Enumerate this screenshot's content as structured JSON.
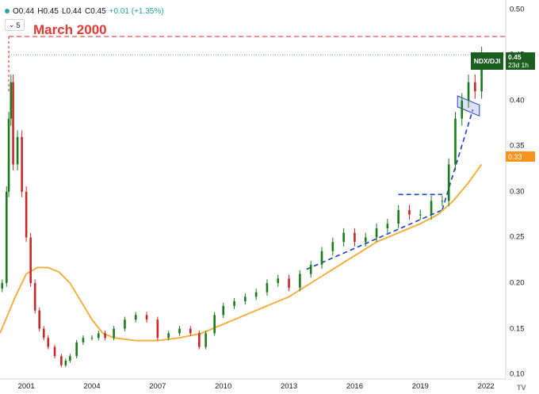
{
  "header": {
    "open": "O0.44",
    "high": "H0.45",
    "low": "L0.44",
    "close": "C0.45",
    "change": "+0.01 (+1.35%)",
    "indicator_count": "5"
  },
  "annotation": {
    "text": "March 2000"
  },
  "price_label": {
    "symbol": "NDX/DJI",
    "value": "0.45",
    "countdown": "23d 1h"
  },
  "ma_label": {
    "value": "0.33"
  },
  "colors": {
    "up": "#1b7a1b",
    "down": "#c62828",
    "moving_average": "#f5b044",
    "trendline": "#1a3fcf",
    "annotation": "#e53935",
    "price_tag": "#1b5e20"
  },
  "chart_data": {
    "type": "line",
    "subtype": "candlestick with moving average",
    "xlabel": "",
    "ylabel": "",
    "x_ticks": [
      "2001",
      "2004",
      "2007",
      "2010",
      "2013",
      "2016",
      "2019",
      "2022"
    ],
    "y_ticks": [
      "0.50",
      "0.45",
      "0.40",
      "0.35",
      "0.30",
      "0.25",
      "0.20",
      "0.15",
      "0.10"
    ],
    "ylim": [
      0.095,
      0.51
    ],
    "xlim": [
      1999.8,
      2022.9
    ],
    "grid": false,
    "series": [
      {
        "name": "",
        "kind": "price",
        "x": [
          1999.9,
          2000.1,
          2000.2,
          2000.3,
          2000.4,
          2000.6,
          2000.8,
          2001.0,
          2001.2,
          2001.4,
          2001.6,
          2001.8,
          2002.0,
          2002.3,
          2002.6,
          2002.8,
          2003.0,
          2003.3,
          2003.6,
          2004.0,
          2004.3,
          2004.6,
          2005.0,
          2005.5,
          2006.0,
          2006.5,
          2007.0,
          2007.5,
          2008.0,
          2008.5,
          2008.9,
          2009.2,
          2009.6,
          2010.0,
          2010.5,
          2011.0,
          2011.5,
          2012.0,
          2012.5,
          2013.0,
          2013.5,
          2014.0,
          2014.5,
          2015.0,
          2015.5,
          2016.0,
          2016.5,
          2017.0,
          2017.5,
          2018.0,
          2018.5,
          2019.0,
          2019.5,
          2020.0,
          2020.3,
          2020.6,
          2020.9,
          2021.2,
          2021.5,
          2021.8
        ],
        "y": [
          0.2,
          0.3,
          0.38,
          0.42,
          0.33,
          0.36,
          0.3,
          0.25,
          0.2,
          0.17,
          0.15,
          0.14,
          0.13,
          0.12,
          0.11,
          0.115,
          0.12,
          0.135,
          0.14,
          0.14,
          0.145,
          0.14,
          0.15,
          0.16,
          0.165,
          0.16,
          0.14,
          0.145,
          0.15,
          0.145,
          0.13,
          0.145,
          0.165,
          0.175,
          0.18,
          0.185,
          0.19,
          0.2,
          0.205,
          0.195,
          0.21,
          0.22,
          0.235,
          0.245,
          0.255,
          0.245,
          0.25,
          0.26,
          0.265,
          0.28,
          0.275,
          0.275,
          0.29,
          0.29,
          0.33,
          0.38,
          0.4,
          0.42,
          0.41,
          0.45
        ]
      },
      {
        "name": "",
        "kind": "moving_average",
        "x": [
          1999.8,
          2000.5,
          2001.0,
          2001.5,
          2002.0,
          2002.5,
          2003.0,
          2003.5,
          2004.0,
          2004.5,
          2005.0,
          2006.0,
          2007.0,
          2008.0,
          2009.0,
          2010.0,
          2011.0,
          2012.0,
          2013.0,
          2014.0,
          2015.0,
          2016.0,
          2017.0,
          2018.0,
          2019.0,
          2019.8,
          2020.5,
          2021.2,
          2021.8
        ],
        "y": [
          0.145,
          0.185,
          0.21,
          0.217,
          0.217,
          0.212,
          0.2,
          0.18,
          0.16,
          0.145,
          0.14,
          0.137,
          0.137,
          0.14,
          0.145,
          0.155,
          0.165,
          0.175,
          0.185,
          0.2,
          0.215,
          0.23,
          0.245,
          0.255,
          0.265,
          0.275,
          0.29,
          0.31,
          0.33
        ]
      }
    ],
    "annotations": [
      {
        "type": "horizontal_line",
        "y": 0.47,
        "style": "dashed"
      },
      {
        "type": "horizontal_line",
        "y": 0.45,
        "style": "dotted"
      },
      {
        "type": "vertical_line",
        "x": 2000.2,
        "style": "dashed"
      },
      {
        "type": "trendline",
        "x": [
          2013.8,
          2020.0
        ],
        "y": [
          0.215,
          0.28
        ]
      },
      {
        "type": "trendline",
        "x": [
          2018.0,
          2020.0
        ],
        "y": [
          0.297,
          0.297
        ]
      },
      {
        "type": "trendline",
        "x": [
          2020.0,
          2021.4
        ],
        "y": [
          0.28,
          0.39
        ]
      },
      {
        "type": "channel",
        "x": [
          2020.7,
          2021.7
        ],
        "y": [
          0.395,
          0.385
        ]
      }
    ]
  }
}
